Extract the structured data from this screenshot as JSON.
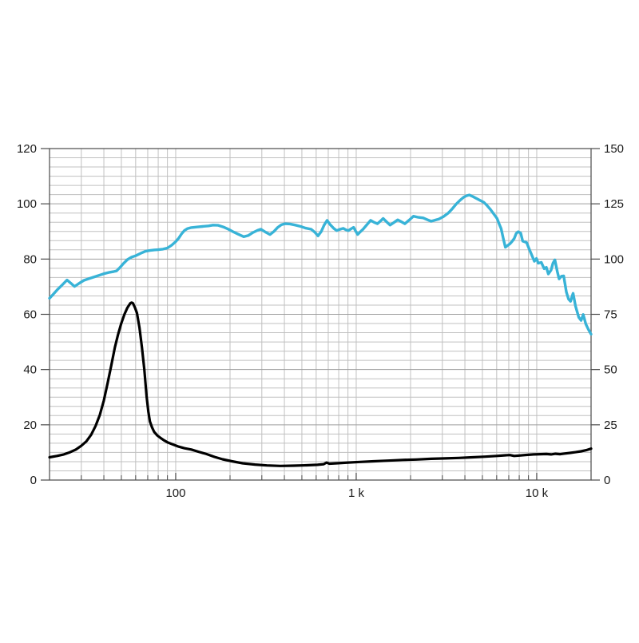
{
  "page": {
    "background": "#ffffff"
  },
  "chart_data": {
    "type": "line",
    "title": "",
    "xlabel": "",
    "ylabel_left": "",
    "ylabel_right": "",
    "legend": "none",
    "x_axis": {
      "scale": "log",
      "min": 20,
      "max": 20000,
      "major_ticks": [
        {
          "value": 100,
          "label": "100"
        },
        {
          "value": 1000,
          "label": "1 k"
        },
        {
          "value": 10000,
          "label": "10 k"
        }
      ]
    },
    "y_axis_left": {
      "min": 0,
      "max": 120,
      "major_step": 20,
      "minor_divisions": 6,
      "tick_labels": [
        "120",
        "100",
        "80",
        "60",
        "40",
        "20",
        "0"
      ]
    },
    "y_axis_right": {
      "min": 0,
      "max": 150,
      "major_step": 25,
      "tick_labels": [
        "150",
        "125",
        "100",
        "75",
        "50",
        "25",
        "0"
      ]
    },
    "grid": {
      "minor_color": "#c0c0c0",
      "major_color": "#9e9e9e",
      "border_color": "#4a4a4a",
      "background": "#ffffff"
    },
    "series": [
      {
        "name": "spl-frequency-response",
        "axis": "left",
        "color": "#38b3d7",
        "stroke_width": 3.4,
        "points": [
          [
            20,
            65.8
          ],
          [
            21,
            67.3
          ],
          [
            22,
            68.8
          ],
          [
            23.5,
            70.6
          ],
          [
            25,
            72.4
          ],
          [
            26.2,
            71.3
          ],
          [
            27.5,
            70.1
          ],
          [
            29,
            71.1
          ],
          [
            31,
            72.3
          ],
          [
            33,
            72.9
          ],
          [
            36,
            73.7
          ],
          [
            40,
            74.7
          ],
          [
            43,
            75.2
          ],
          [
            45.5,
            75.5
          ],
          [
            47,
            75.7
          ],
          [
            49,
            76.9
          ],
          [
            51,
            78.2
          ],
          [
            54,
            79.8
          ],
          [
            57,
            80.7
          ],
          [
            60,
            81.2
          ],
          [
            64,
            82.1
          ],
          [
            68,
            82.8
          ],
          [
            72,
            83.1
          ],
          [
            76,
            83.3
          ],
          [
            80,
            83.4
          ],
          [
            85,
            83.6
          ],
          [
            90,
            84.0
          ],
          [
            95,
            85.0
          ],
          [
            100,
            86.3
          ],
          [
            104,
            87.6
          ],
          [
            108,
            89.2
          ],
          [
            112,
            90.4
          ],
          [
            116,
            91.0
          ],
          [
            122,
            91.4
          ],
          [
            131,
            91.6
          ],
          [
            141,
            91.8
          ],
          [
            152,
            92.0
          ],
          [
            161,
            92.3
          ],
          [
            172,
            92.2
          ],
          [
            184,
            91.6
          ],
          [
            196,
            90.8
          ],
          [
            208,
            89.9
          ],
          [
            222,
            89.0
          ],
          [
            238,
            88.1
          ],
          [
            252,
            88.5
          ],
          [
            268,
            89.6
          ],
          [
            284,
            90.4
          ],
          [
            296,
            90.8
          ],
          [
            312,
            89.9
          ],
          [
            333,
            88.9
          ],
          [
            350,
            90.0
          ],
          [
            368,
            91.5
          ],
          [
            385,
            92.4
          ],
          [
            402,
            92.8
          ],
          [
            430,
            92.7
          ],
          [
            460,
            92.3
          ],
          [
            492,
            91.8
          ],
          [
            525,
            91.2
          ],
          [
            563,
            90.8
          ],
          [
            590,
            89.7
          ],
          [
            614,
            88.4
          ],
          [
            640,
            90.0
          ],
          [
            664,
            92.3
          ],
          [
            690,
            94.0
          ],
          [
            715,
            92.6
          ],
          [
            748,
            91.2
          ],
          [
            779,
            90.3
          ],
          [
            815,
            90.8
          ],
          [
            848,
            91.1
          ],
          [
            876,
            90.6
          ],
          [
            905,
            90.3
          ],
          [
            935,
            90.9
          ],
          [
            967,
            91.5
          ],
          [
            995,
            90.0
          ],
          [
            1019,
            88.9
          ],
          [
            1055,
            89.9
          ],
          [
            1091,
            90.8
          ],
          [
            1145,
            92.4
          ],
          [
            1202,
            94.0
          ],
          [
            1255,
            93.3
          ],
          [
            1310,
            92.8
          ],
          [
            1360,
            93.7
          ],
          [
            1410,
            94.7
          ],
          [
            1472,
            93.5
          ],
          [
            1540,
            92.3
          ],
          [
            1615,
            93.2
          ],
          [
            1700,
            94.2
          ],
          [
            1778,
            93.5
          ],
          [
            1860,
            92.8
          ],
          [
            1964,
            94.1
          ],
          [
            2075,
            95.5
          ],
          [
            2210,
            95.1
          ],
          [
            2350,
            94.9
          ],
          [
            2470,
            94.3
          ],
          [
            2600,
            93.7
          ],
          [
            2730,
            94.1
          ],
          [
            2870,
            94.5
          ],
          [
            3045,
            95.4
          ],
          [
            3230,
            96.6
          ],
          [
            3404,
            98.2
          ],
          [
            3590,
            100.0
          ],
          [
            3760,
            101.3
          ],
          [
            3940,
            102.4
          ],
          [
            4080,
            102.9
          ],
          [
            4230,
            103.2
          ],
          [
            4440,
            102.6
          ],
          [
            4650,
            101.9
          ],
          [
            4870,
            101.2
          ],
          [
            5100,
            100.5
          ],
          [
            5305,
            99.4
          ],
          [
            5520,
            98.1
          ],
          [
            5770,
            96.4
          ],
          [
            6030,
            94.7
          ],
          [
            6180,
            92.9
          ],
          [
            6350,
            91.0
          ],
          [
            6520,
            87.6
          ],
          [
            6700,
            84.3
          ],
          [
            6900,
            84.9
          ],
          [
            7100,
            85.5
          ],
          [
            7300,
            86.4
          ],
          [
            7500,
            87.4
          ],
          [
            7700,
            89.3
          ],
          [
            7900,
            89.9
          ],
          [
            8150,
            89.4
          ],
          [
            8360,
            86.5
          ],
          [
            8790,
            86.0
          ],
          [
            9100,
            83.5
          ],
          [
            9420,
            81.2
          ],
          [
            9700,
            79.2
          ],
          [
            9960,
            80.2
          ],
          [
            10200,
            78.5
          ],
          [
            10600,
            78.8
          ],
          [
            11000,
            76.5
          ],
          [
            11300,
            77.0
          ],
          [
            11600,
            74.6
          ],
          [
            12000,
            76.0
          ],
          [
            12300,
            78.5
          ],
          [
            12600,
            79.7
          ],
          [
            13000,
            75.5
          ],
          [
            13300,
            72.8
          ],
          [
            13700,
            73.8
          ],
          [
            14100,
            73.9
          ],
          [
            14600,
            68.0
          ],
          [
            15000,
            65.5
          ],
          [
            15400,
            64.7
          ],
          [
            15900,
            67.6
          ],
          [
            16400,
            63.0
          ],
          [
            17100,
            58.9
          ],
          [
            17600,
            57.8
          ],
          [
            18100,
            59.9
          ],
          [
            18700,
            56.5
          ],
          [
            19300,
            54.6
          ],
          [
            20000,
            52.8
          ]
        ]
      },
      {
        "name": "impedance",
        "axis": "right",
        "color": "#000000",
        "stroke_width": 3.2,
        "points": [
          [
            20,
            10.3
          ],
          [
            22,
            10.9
          ],
          [
            24,
            11.6
          ],
          [
            26,
            12.6
          ],
          [
            28,
            13.8
          ],
          [
            30,
            15.5
          ],
          [
            32,
            17.5
          ],
          [
            34,
            20.5
          ],
          [
            36,
            24.5
          ],
          [
            38,
            29.5
          ],
          [
            40,
            36
          ],
          [
            42,
            44
          ],
          [
            44,
            52
          ],
          [
            46,
            60
          ],
          [
            48,
            66
          ],
          [
            50,
            71
          ],
          [
            52,
            75
          ],
          [
            54,
            78
          ],
          [
            56,
            80
          ],
          [
            57,
            80.3
          ],
          [
            58,
            80
          ],
          [
            59.5,
            78
          ],
          [
            61,
            75.5
          ],
          [
            63,
            69
          ],
          [
            65,
            60
          ],
          [
            67,
            50
          ],
          [
            69,
            38
          ],
          [
            70.5,
            31
          ],
          [
            72,
            26.5
          ],
          [
            74,
            23.8
          ],
          [
            76,
            21.8
          ],
          [
            79,
            20.2
          ],
          [
            82,
            19.2
          ],
          [
            86,
            18.0
          ],
          [
            90,
            17.1
          ],
          [
            96,
            16.2
          ],
          [
            103,
            15.2
          ],
          [
            112,
            14.4
          ],
          [
            122,
            13.8
          ],
          [
            134,
            12.8
          ],
          [
            148,
            11.8
          ],
          [
            164,
            10.5
          ],
          [
            182,
            9.4
          ],
          [
            205,
            8.5
          ],
          [
            235,
            7.6
          ],
          [
            275,
            7.0
          ],
          [
            320,
            6.6
          ],
          [
            380,
            6.4
          ],
          [
            450,
            6.5
          ],
          [
            530,
            6.7
          ],
          [
            610,
            6.9
          ],
          [
            660,
            7.2
          ],
          [
            685,
            7.9
          ],
          [
            710,
            7.4
          ],
          [
            780,
            7.6
          ],
          [
            900,
            7.9
          ],
          [
            1050,
            8.2
          ],
          [
            1250,
            8.5
          ],
          [
            1500,
            8.8
          ],
          [
            1800,
            9.1
          ],
          [
            2150,
            9.3
          ],
          [
            2600,
            9.6
          ],
          [
            3100,
            9.8
          ],
          [
            3700,
            10.0
          ],
          [
            4400,
            10.3
          ],
          [
            5200,
            10.6
          ],
          [
            6000,
            10.9
          ],
          [
            6700,
            11.2
          ],
          [
            7100,
            11.3
          ],
          [
            7500,
            10.9
          ],
          [
            8000,
            11.1
          ],
          [
            8800,
            11.4
          ],
          [
            9600,
            11.6
          ],
          [
            10500,
            11.7
          ],
          [
            11300,
            11.8
          ],
          [
            12000,
            11.6
          ],
          [
            12700,
            11.9
          ],
          [
            13500,
            11.7
          ],
          [
            14300,
            12.0
          ],
          [
            15300,
            12.3
          ],
          [
            16400,
            12.6
          ],
          [
            17600,
            13.0
          ],
          [
            18800,
            13.5
          ],
          [
            20000,
            14.2
          ]
        ]
      }
    ]
  }
}
